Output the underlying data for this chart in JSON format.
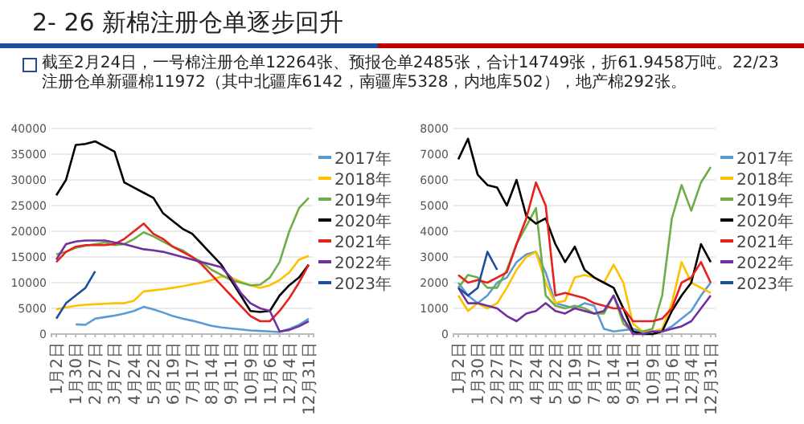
{
  "chart_data": [
    {
      "type": "line",
      "title": "2- 26 新棉注册仓单逐步回升",
      "annotations": [
        "截至2月24日，一号棉注册仓单12264张、预报仓单2485张，合计14749张，折61.9458万吨。22/23注册仓单新疆棉11972（其中北疆库6142，南疆库5328，内地库502），地产棉292张。"
      ],
      "categories": [
        "1月2日",
        null,
        "1月30日",
        null,
        "2月27日",
        null,
        "3月27日",
        null,
        "4月24日",
        null,
        "5月22日",
        null,
        "6月19日",
        null,
        "7月17日",
        null,
        "8月14日",
        null,
        "9月11日",
        null,
        "10月9日",
        null,
        "11月6日",
        null,
        "12月4日",
        null,
        "12月31日"
      ],
      "ylim": [
        0,
        40000
      ],
      "yticks": [
        0,
        5000,
        10000,
        15000,
        20000,
        25000,
        30000,
        35000,
        40000
      ],
      "grid": "y",
      "legend": "right",
      "marker": "none",
      "line_style": "solid",
      "series": [
        {
          "name": "2017年",
          "color": "#5b9bd5",
          "values": [
            null,
            null,
            1900,
            1800,
            3000,
            3300,
            3600,
            4000,
            4500,
            5300,
            4800,
            4200,
            3500,
            3000,
            2600,
            2100,
            1600,
            1300,
            1100,
            900,
            700,
            600,
            500,
            400,
            1000,
            1800,
            3000
          ]
        },
        {
          "name": "2018年",
          "color": "#ffc000",
          "values": [
            4800,
            5200,
            5500,
            5700,
            5800,
            5900,
            6000,
            6000,
            6500,
            8300,
            8500,
            8700,
            9000,
            9300,
            9700,
            10000,
            10500,
            11200,
            11000,
            10200,
            9500,
            9000,
            9500,
            10500,
            12000,
            14500,
            15200
          ]
        },
        {
          "name": "2019年",
          "color": "#70ad47",
          "values": [
            15500,
            16000,
            16800,
            17200,
            17500,
            17800,
            17300,
            17500,
            18500,
            19800,
            19000,
            18000,
            17000,
            16300,
            15000,
            14000,
            12500,
            11500,
            10500,
            10000,
            9500,
            9600,
            11000,
            14000,
            20000,
            24500,
            26500
          ]
        },
        {
          "name": "2020年",
          "color": "#000000",
          "values": [
            27000,
            30000,
            36800,
            37000,
            37500,
            36500,
            35500,
            29500,
            28500,
            27500,
            26500,
            23500,
            22000,
            20500,
            19500,
            17500,
            15500,
            13500,
            10500,
            7500,
            4500,
            4300,
            4500,
            7500,
            9500,
            11000,
            13500
          ]
        },
        {
          "name": "2021年",
          "color": "#e8211d",
          "values": [
            14000,
            16000,
            17000,
            17300,
            17300,
            17300,
            17500,
            18500,
            20000,
            21500,
            19500,
            18500,
            17000,
            16000,
            15000,
            13500,
            11500,
            9500,
            7500,
            5500,
            3500,
            2500,
            2500,
            4500,
            7000,
            10000,
            13500
          ]
        },
        {
          "name": "2022年",
          "color": "#7030a0",
          "values": [
            14500,
            17500,
            18000,
            18200,
            18200,
            18200,
            17800,
            17500,
            17000,
            16500,
            16300,
            16000,
            15500,
            15000,
            14500,
            14000,
            13500,
            13000,
            11000,
            8000,
            6000,
            5000,
            4500,
            500,
            800,
            1500,
            2500
          ]
        },
        {
          "name": "2023年",
          "color": "#1f4e9a",
          "values": [
            3000,
            6000,
            7500,
            9000,
            12200,
            null,
            null,
            null,
            null,
            null,
            null,
            null,
            null,
            null,
            null,
            null,
            null,
            null,
            null,
            null,
            null,
            null,
            null,
            null,
            null,
            null,
            null
          ]
        }
      ]
    },
    {
      "type": "line",
      "categories": [
        "1月2日",
        null,
        "1月30日",
        null,
        "2月27日",
        null,
        "3月27日",
        null,
        "4月24日",
        null,
        "5月22日",
        null,
        "6月19日",
        null,
        "7月17日",
        null,
        "8月14日",
        null,
        "9月11日",
        null,
        "10月9日",
        null,
        "11月6日",
        null,
        "12月4日",
        null,
        "12月31日"
      ],
      "ylim": [
        0,
        8000
      ],
      "yticks": [
        0,
        1000,
        2000,
        3000,
        4000,
        5000,
        6000,
        7000,
        8000
      ],
      "grid": "y",
      "legend": "right",
      "marker": "none",
      "line_style": "solid",
      "series": [
        {
          "name": "2017年",
          "color": "#5b9bd5",
          "values": [
            2000,
            1500,
            1200,
            1500,
            2000,
            2200,
            2800,
            3100,
            3200,
            2400,
            1200,
            1100,
            1000,
            1200,
            1100,
            200,
            100,
            150,
            200,
            100,
            100,
            100,
            300,
            600,
            900,
            1500,
            2000
          ]
        },
        {
          "name": "2018年",
          "color": "#ffc000",
          "values": [
            1500,
            900,
            1200,
            1000,
            1200,
            1800,
            2500,
            3000,
            3200,
            2000,
            1200,
            1300,
            2200,
            2300,
            2200,
            2000,
            2700,
            2000,
            400,
            100,
            100,
            200,
            1200,
            2800,
            2000,
            1800,
            1600
          ]
        },
        {
          "name": "2019年",
          "color": "#70ad47",
          "values": [
            1800,
            2300,
            2200,
            1800,
            1800,
            2500,
            3500,
            4200,
            4900,
            1500,
            1100,
            1000,
            1100,
            1000,
            800,
            800,
            1500,
            400,
            100,
            100,
            200,
            1500,
            4500,
            5800,
            4800,
            5900,
            6500
          ]
        },
        {
          "name": "2020年",
          "color": "#000000",
          "values": [
            6800,
            7600,
            6200,
            5800,
            5700,
            5000,
            6000,
            4600,
            4300,
            4500,
            3500,
            2800,
            3400,
            2500,
            2200,
            2000,
            1800,
            1000,
            100,
            0,
            0,
            100,
            900,
            1500,
            2000,
            3500,
            2800
          ]
        },
        {
          "name": "2021年",
          "color": "#e8211d",
          "values": [
            2300,
            2000,
            2100,
            2000,
            2200,
            2400,
            3500,
            4500,
            5900,
            5000,
            1500,
            1600,
            1500,
            1400,
            1200,
            1100,
            1000,
            1000,
            500,
            500,
            500,
            600,
            1000,
            2000,
            2200,
            2800,
            2000
          ]
        },
        {
          "name": "2022年",
          "color": "#7030a0",
          "values": [
            1800,
            1200,
            1200,
            1100,
            1000,
            700,
            500,
            800,
            900,
            1200,
            900,
            800,
            1000,
            900,
            800,
            900,
            1500,
            600,
            0,
            0,
            100,
            100,
            200,
            300,
            500,
            1000,
            1500
          ]
        },
        {
          "name": "2023年",
          "color": "#1f4e9a",
          "values": [
            1800,
            1500,
            1800,
            3200,
            2500,
            null,
            null,
            null,
            null,
            null,
            null,
            null,
            null,
            null,
            null,
            null,
            null,
            null,
            null,
            null,
            null,
            null,
            null,
            null,
            null,
            null,
            null
          ]
        }
      ]
    }
  ]
}
